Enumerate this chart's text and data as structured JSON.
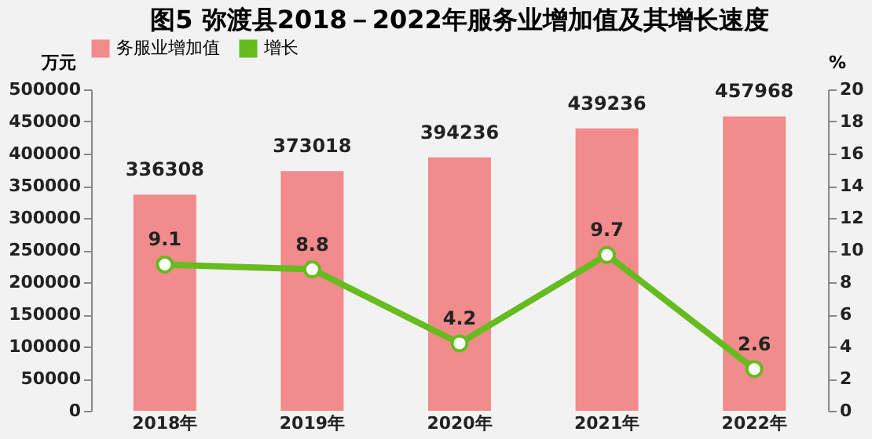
{
  "chart_data": {
    "type": "bar",
    "title": "图5 弥渡县2018－2022年服务业增加值及其增长速度",
    "ylabel": "万元",
    "y2label": "%",
    "categories": [
      "2018年",
      "2019年",
      "2020年",
      "2021年",
      "2022年"
    ],
    "series": [
      {
        "name": "务服业增加值",
        "color": "#f28b8b",
        "values": [
          336308,
          373018,
          394236,
          439236,
          457968
        ]
      },
      {
        "name": "增长",
        "type": "line",
        "axis": "y2",
        "color": "#66bb1f",
        "values": [
          9.1,
          8.8,
          4.2,
          9.7,
          2.6
        ]
      }
    ],
    "ylim": [
      0,
      500000
    ],
    "yticks": [
      0,
      50000,
      100000,
      150000,
      200000,
      250000,
      300000,
      350000,
      400000,
      450000,
      500000
    ],
    "y2lim": [
      0,
      20
    ],
    "y2ticks": [
      0,
      2,
      4,
      6,
      8,
      10,
      12,
      14,
      16,
      18,
      20
    ],
    "data_labels": true,
    "legend": "top",
    "marker": "circle",
    "grid": false
  }
}
